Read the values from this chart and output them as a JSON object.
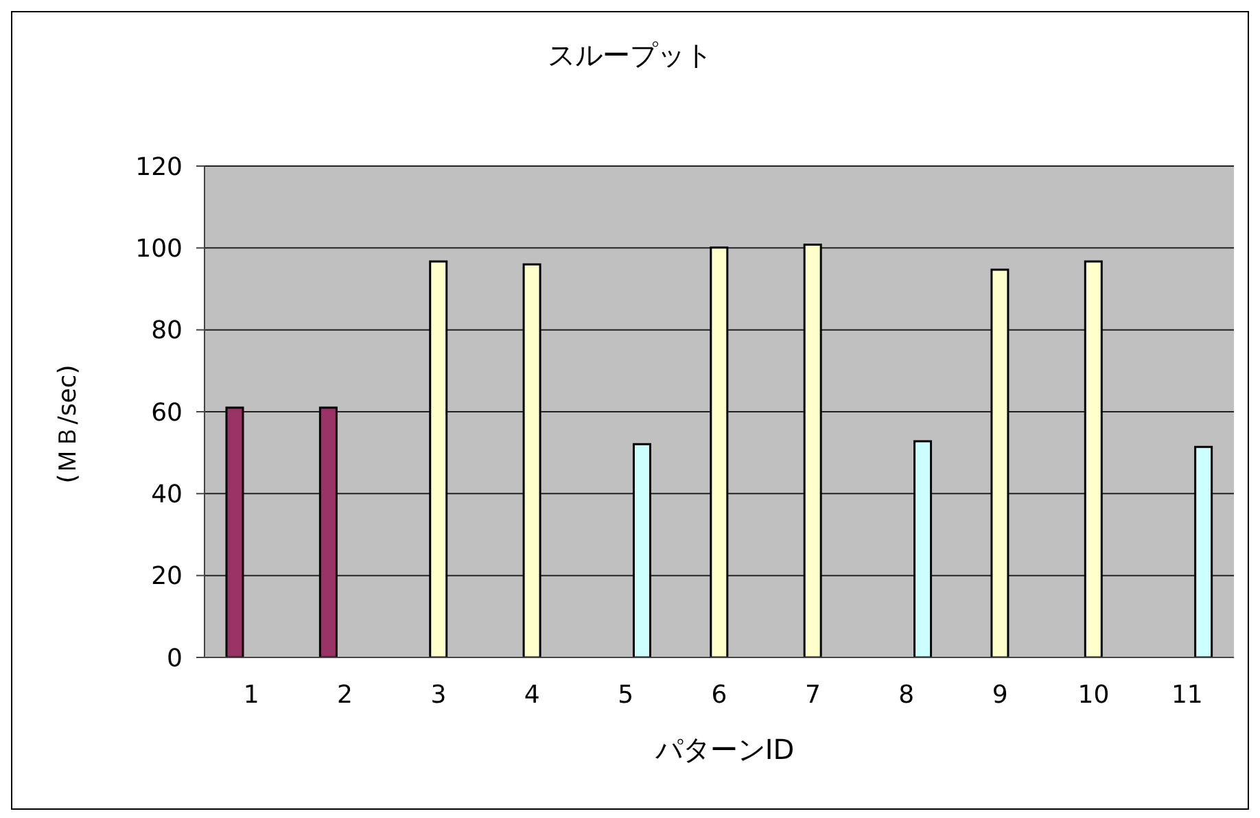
{
  "chart_data": {
    "type": "bar",
    "title": "スループット",
    "xlabel": "パターンID",
    "ylabel": "(ＭＢ/sec)",
    "categories": [
      "1",
      "2",
      "3",
      "4",
      "5",
      "6",
      "7",
      "8",
      "9",
      "10",
      "11"
    ],
    "series": [
      {
        "color": "#993366",
        "values": [
          61.0,
          61.0,
          null,
          null,
          null,
          null,
          null,
          null,
          null,
          null,
          null
        ]
      },
      {
        "color": "#ffffcc",
        "values": [
          null,
          null,
          96.7,
          96.0,
          null,
          100.1,
          100.8,
          null,
          94.7,
          96.7,
          null
        ]
      },
      {
        "color": "#ccffff",
        "values": [
          null,
          null,
          null,
          null,
          52.1,
          null,
          null,
          52.8,
          null,
          null,
          51.4
        ]
      }
    ],
    "ylim": [
      0,
      120
    ],
    "yticks": [
      0,
      20,
      40,
      60,
      80,
      100,
      120
    ],
    "grid": "y",
    "legend": false
  }
}
